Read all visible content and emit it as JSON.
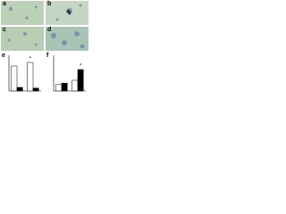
{
  "panels": [
    {
      "label": "a"
    },
    {
      "label": "b"
    },
    {
      "label": "c"
    },
    {
      "label": "d"
    }
  ],
  "charts": [
    {
      "label": "e",
      "type": "bar",
      "ylim": [
        0,
        100
      ],
      "annotation": "*",
      "series": [
        {
          "color": "#ffffff",
          "values": [
            70,
            80
          ]
        },
        {
          "color": "#000000",
          "values": [
            10,
            8
          ]
        }
      ]
    },
    {
      "label": "f",
      "type": "bar",
      "ylim": [
        0,
        100
      ],
      "annotation": "*",
      "series": [
        {
          "color": "#ffffff",
          "values": [
            18,
            30
          ]
        },
        {
          "color": "#000000",
          "values": [
            22,
            60
          ]
        }
      ]
    }
  ]
}
